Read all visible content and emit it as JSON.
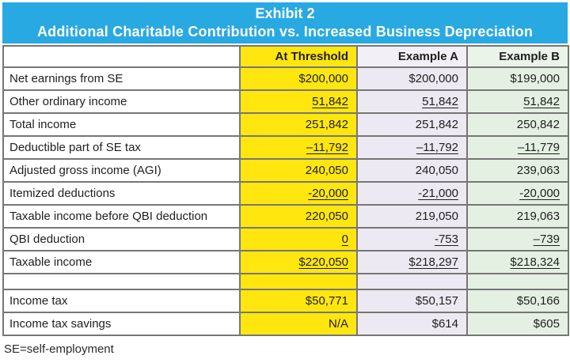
{
  "title": {
    "line1": "Exhibit 2",
    "line2": "Additional Charitable Contribution vs. Increased Business Depreciation"
  },
  "table": {
    "columns": [
      "",
      "At Threshold",
      "Example A",
      "Example B"
    ],
    "rows": [
      {
        "label": "Net earnings from SE",
        "values": [
          "$200,000",
          "$200,000",
          "$199,000"
        ],
        "underline": false
      },
      {
        "label": "Other ordinary income",
        "values": [
          "51,842",
          "51,842",
          "51,842"
        ],
        "underline": true
      },
      {
        "label": "Total income",
        "values": [
          "251,842",
          "251,842",
          "250,842"
        ],
        "underline": false
      },
      {
        "label": "Deductible part of SE tax",
        "values": [
          "–11,792",
          "–11,792",
          "–11,779"
        ],
        "underline": true
      },
      {
        "label": "Adjusted gross income (AGI)",
        "values": [
          "240,050",
          "240,050",
          "239,063"
        ],
        "underline": false
      },
      {
        "label": "Itemized deductions",
        "values": [
          "-20,000",
          "-21,000",
          "-20,000"
        ],
        "underline": true
      },
      {
        "label": "Taxable income before QBI deduction",
        "values": [
          "220,050",
          "219,050",
          "219,063"
        ],
        "underline": false
      },
      {
        "label": "QBI deduction",
        "values": [
          "0",
          "-753",
          "–739"
        ],
        "underline": true
      },
      {
        "label": "Taxable income",
        "values": [
          "$220,050",
          "$218,297",
          "$218,324"
        ],
        "underline": true
      },
      {
        "label": "",
        "values": [
          "",
          "",
          ""
        ],
        "underline": false
      },
      {
        "label": "Income tax",
        "values": [
          "$50,771",
          "$50,157",
          "$50,166"
        ],
        "underline": false
      },
      {
        "label": "Income tax savings",
        "values": [
          "N/A",
          "$614",
          "$605"
        ],
        "underline": false
      }
    ]
  },
  "footnote": "SE=self-employment",
  "colors": {
    "title_bar_blue": "#29A9E1",
    "title_text": "#FFFFFF",
    "at_threshold_yellow": "#FFE60F",
    "example_a_lavender": "#ECE9F2",
    "example_b_green": "#E4F1E2",
    "grid_gray": "#767676",
    "body_text": "#1F1F1F"
  }
}
